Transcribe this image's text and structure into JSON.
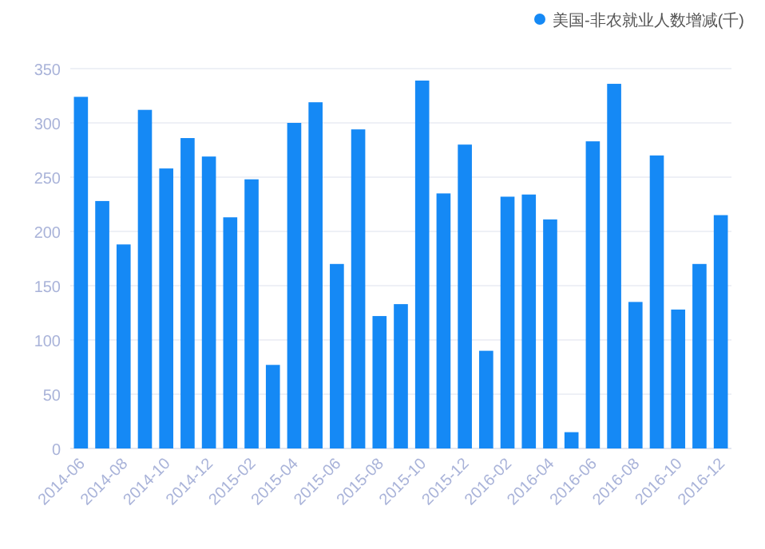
{
  "chart_data": {
    "type": "bar",
    "categories": [
      "2014-06",
      null,
      "2014-08",
      null,
      "2014-10",
      null,
      "2014-12",
      null,
      "2015-02",
      null,
      "2015-04",
      null,
      "2015-06",
      null,
      "2015-08",
      null,
      "2015-10",
      null,
      "2015-12",
      null,
      "2016-02",
      null,
      "2016-04",
      null,
      "2016-06",
      null,
      "2016-08",
      null,
      "2016-10",
      null,
      "2016-12"
    ],
    "series": [
      {
        "name": "美国-非农就业人数增减(千)",
        "color": "#1589f5",
        "values": [
          324,
          228,
          188,
          312,
          258,
          286,
          269,
          213,
          248,
          77,
          300,
          319,
          170,
          294,
          122,
          133,
          339,
          235,
          280,
          90,
          232,
          234,
          211,
          15,
          283,
          336,
          135,
          270,
          128,
          170,
          215
        ]
      }
    ],
    "ylim": [
      0,
      350
    ],
    "yticks": [
      0,
      50,
      100,
      150,
      200,
      250,
      300,
      350
    ],
    "grid": "y",
    "legend": "top right"
  }
}
